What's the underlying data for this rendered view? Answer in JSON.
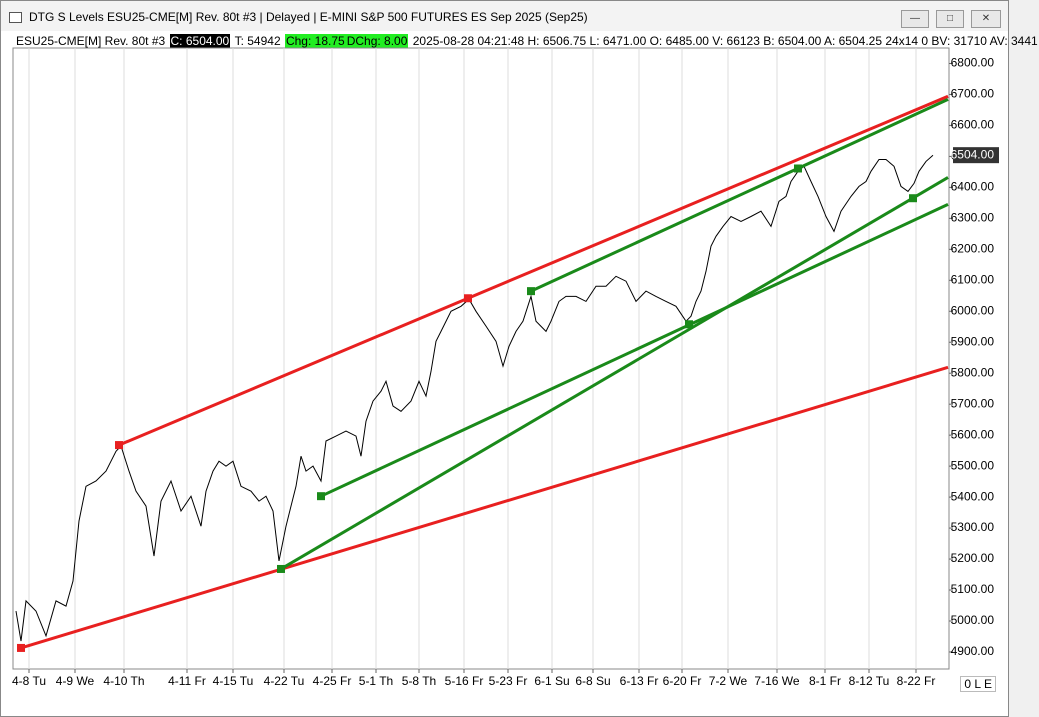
{
  "window": {
    "title": "DTG S Levels ESU25-CME[M]  Rev. 80t #3 | Delayed | E-MINI S&P 500 FUTURES ES Sep 2025 (Sep25)"
  },
  "info_bar": {
    "symbol": "ESU25-CME[M]  Rev. 80t #3",
    "close": "C: 6504.00",
    "ticks": "T: 54942",
    "change": "Chg: 18.75",
    "daily_change": "DChg: 8.00",
    "details": "2025-08-28 04:21:48 H: 6506.75 L: 6471.00 O: 6485.00 V: 66123 B: 6504.00 A: 6504.25 24x14 0 BV: 31710 AV: 3441"
  },
  "status": "0 L E",
  "chart_data": {
    "type": "line",
    "xlim": [
      0,
      936
    ],
    "ylim": [
      4845,
      6850
    ],
    "xticks": [
      {
        "value": 16,
        "label": "4-8 Tu"
      },
      {
        "value": 62,
        "label": "4-9 We"
      },
      {
        "value": 111,
        "label": "4-10 Th"
      },
      {
        "value": 174,
        "label": "4-11 Fr"
      },
      {
        "value": 220,
        "label": "4-15 Tu"
      },
      {
        "value": 271,
        "label": "4-22 Tu"
      },
      {
        "value": 319,
        "label": "4-25 Fr"
      },
      {
        "value": 363,
        "label": "5-1 Th"
      },
      {
        "value": 406,
        "label": "5-8 Th"
      },
      {
        "value": 451,
        "label": "5-16 Fr"
      },
      {
        "value": 495,
        "label": "5-23 Fr"
      },
      {
        "value": 539,
        "label": "6-1 Su"
      },
      {
        "value": 580,
        "label": "6-8 Su"
      },
      {
        "value": 626,
        "label": "6-13 Fr"
      },
      {
        "value": 669,
        "label": "6-20 Fr"
      },
      {
        "value": 715,
        "label": "7-2 We"
      },
      {
        "value": 764,
        "label": "7-16 We"
      },
      {
        "value": 812,
        "label": "8-1 Fr"
      },
      {
        "value": 856,
        "label": "8-12 Tu"
      },
      {
        "value": 903,
        "label": "8-22 Fr"
      }
    ],
    "yticks": [
      {
        "value": 4900,
        "label": "4900.00"
      },
      {
        "value": 5000,
        "label": "5000.00"
      },
      {
        "value": 5100,
        "label": "5100.00"
      },
      {
        "value": 5200,
        "label": "5200.00"
      },
      {
        "value": 5300,
        "label": "5300.00"
      },
      {
        "value": 5400,
        "label": "5400.00"
      },
      {
        "value": 5500,
        "label": "5500.00"
      },
      {
        "value": 5600,
        "label": "5600.00"
      },
      {
        "value": 5700,
        "label": "5700.00"
      },
      {
        "value": 5800,
        "label": "5800.00"
      },
      {
        "value": 5900,
        "label": "5900.00"
      },
      {
        "value": 6000,
        "label": "6000.00"
      },
      {
        "value": 6100,
        "label": "6100.00"
      },
      {
        "value": 6200,
        "label": "6200.00"
      },
      {
        "value": 6300,
        "label": "6300.00"
      },
      {
        "value": 6400,
        "label": "6400.00"
      },
      {
        "value": 6500,
        "label": "6500.00"
      },
      {
        "value": 6600,
        "label": "6600.00"
      },
      {
        "value": 6700,
        "label": "6700.00"
      },
      {
        "value": 6800,
        "label": "6800.00"
      }
    ],
    "grid": true,
    "last_price": {
      "value": 6504,
      "label": "6504.00"
    },
    "series": [
      {
        "color": "#000000",
        "x": [
          3,
          8,
          13,
          23,
          33,
          43,
          53,
          60,
          66,
          73,
          83,
          93,
          103,
          108,
          116,
          123,
          133,
          141,
          148,
          158,
          168,
          178,
          188,
          193,
          200,
          206,
          213,
          220,
          228,
          238,
          246,
          253,
          260,
          266,
          273,
          278,
          283,
          288,
          293,
          300,
          308,
          313,
          323,
          333,
          343,
          348,
          353,
          360,
          368,
          373,
          380,
          388,
          398,
          406,
          413,
          418,
          423,
          428,
          438,
          448,
          456,
          463,
          473,
          483,
          490,
          496,
          503,
          510,
          518,
          523,
          533,
          538,
          546,
          553,
          563,
          573,
          583,
          593,
          603,
          613,
          623,
          633,
          643,
          653,
          663,
          673,
          678,
          683,
          688,
          693,
          698,
          703,
          710,
          718,
          728,
          738,
          748,
          758,
          766,
          773,
          778,
          785,
          791,
          798,
          805,
          813,
          821,
          828,
          838,
          846,
          853,
          858,
          866,
          873,
          881,
          888,
          895,
          901,
          906,
          913,
          920
        ],
        "values": [
          5032,
          4935,
          5065,
          5032,
          4952,
          5065,
          5048,
          5129,
          5323,
          5435,
          5452,
          5484,
          5548,
          5565,
          5484,
          5419,
          5371,
          5210,
          5387,
          5452,
          5355,
          5403,
          5306,
          5419,
          5484,
          5516,
          5500,
          5516,
          5435,
          5419,
          5387,
          5403,
          5355,
          5194,
          5306,
          5371,
          5435,
          5532,
          5484,
          5500,
          5452,
          5581,
          5597,
          5613,
          5597,
          5532,
          5645,
          5710,
          5742,
          5774,
          5694,
          5677,
          5710,
          5774,
          5726,
          5806,
          5903,
          5935,
          6000,
          6016,
          6039,
          6000,
          5952,
          5903,
          5823,
          5887,
          5935,
          5968,
          6048,
          5968,
          5935,
          5968,
          6032,
          6048,
          6048,
          6032,
          6081,
          6081,
          6113,
          6097,
          6032,
          6065,
          6048,
          6032,
          6016,
          5968,
          5984,
          6032,
          6065,
          6129,
          6210,
          6242,
          6274,
          6306,
          6290,
          6306,
          6323,
          6274,
          6355,
          6371,
          6419,
          6452,
          6468,
          6419,
          6371,
          6306,
          6258,
          6323,
          6371,
          6403,
          6419,
          6452,
          6490,
          6490,
          6468,
          6403,
          6387,
          6413,
          6452,
          6484,
          6504
        ]
      }
    ],
    "trendlines": [
      {
        "color": "#e82020",
        "x": [
          106,
          935
        ],
        "values": [
          5568,
          6694
        ]
      },
      {
        "color": "#e82020",
        "x": [
          8,
          935
        ],
        "values": [
          4913,
          5819
        ]
      },
      {
        "color": "#1a8a1a",
        "x": [
          268,
          935
        ],
        "values": [
          5168,
          6432
        ]
      },
      {
        "color": "#1a8a1a",
        "x": [
          308,
          935
        ],
        "values": [
          5403,
          6345
        ]
      },
      {
        "color": "#1a8a1a",
        "x": [
          518,
          935
        ],
        "values": [
          6065,
          6684
        ]
      }
    ],
    "markers": [
      {
        "color": "#e82020",
        "x": [
          8,
          106,
          455
        ],
        "values": [
          4913,
          5568,
          6042
        ]
      },
      {
        "color": "#1a8a1a",
        "x": [
          268,
          308,
          518,
          676,
          785,
          900
        ],
        "values": [
          5168,
          5403,
          6065,
          5958,
          6461,
          6365
        ]
      }
    ]
  }
}
